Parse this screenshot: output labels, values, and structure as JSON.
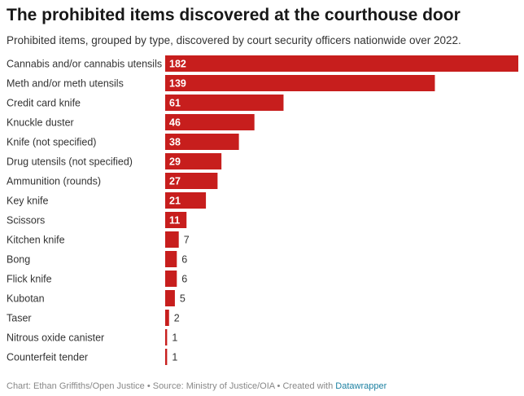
{
  "title": "The prohibited items discovered at the courthouse door",
  "subtitle": "Prohibited items, grouped by type, discovered by court security officers nationwide over 2022.",
  "footer": {
    "text": "Chart: Ethan Griffiths/Open Justice • Source: Ministry of Justice/OIA • Created with ",
    "link_label": "Datawrapper"
  },
  "colors": {
    "bar": "#c71e1d",
    "label_inside": "#ffffff",
    "label_outside": "#333333",
    "category_text": "#333333"
  },
  "chart_data": {
    "type": "bar",
    "orientation": "horizontal",
    "categories": [
      "Cannabis and/or cannabis utensils",
      "Meth and/or meth utensils",
      "Credit card knife",
      "Knuckle duster",
      "Knife (not specified)",
      "Drug utensils (not specified)",
      "Ammunition (rounds)",
      "Key knife",
      "Scissors",
      "Kitchen knife",
      "Bong",
      "Flick knife",
      "Kubotan",
      "Taser",
      "Nitrous oxide canister",
      "Counterfeit tender"
    ],
    "values": [
      182,
      139,
      61,
      46,
      38,
      29,
      27,
      21,
      11,
      7,
      6,
      6,
      5,
      2,
      1,
      1
    ],
    "xlim": [
      0,
      182
    ],
    "grid": false,
    "legend": "none",
    "data_labels": true
  }
}
